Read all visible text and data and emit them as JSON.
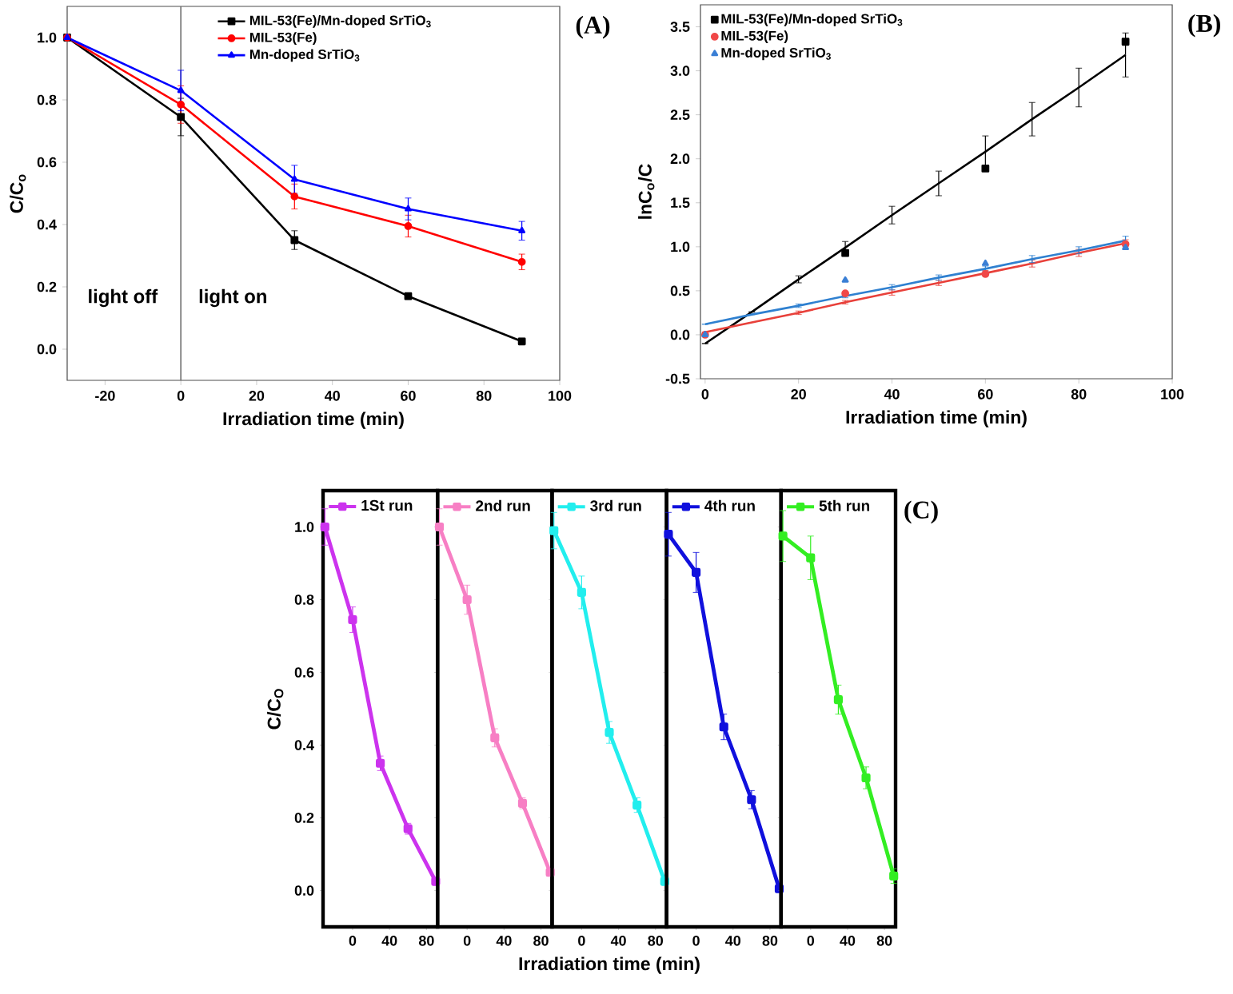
{
  "chart_data": [
    {
      "type": "line",
      "title": "(A)",
      "xlabel": "Irradiation time (min)",
      "ylabel": "C/C$_{o}$",
      "x": [
        -30,
        0,
        30,
        60,
        90
      ],
      "xlim": [
        -30,
        100
      ],
      "ylim": [
        -0.1,
        1.1
      ],
      "xticks": [
        -20,
        0,
        20,
        40,
        60,
        80,
        100
      ],
      "yticks": [
        {
          "value": 0,
          "label": "0.0"
        },
        {
          "value": 0.2,
          "label": "0.2"
        },
        {
          "value": 0.4,
          "label": "0.4"
        },
        {
          "value": 0.6,
          "label": "0.6"
        },
        {
          "value": 0.8,
          "label": "0.8"
        },
        {
          "value": 1,
          "label": "1.0"
        }
      ],
      "legend": "top",
      "ref_lines": [
        {
          "axis": "x",
          "value": 0,
          "color": "#707070"
        }
      ],
      "annotations": [
        "light off",
        "light on"
      ],
      "series": [
        {
          "name": "MIL-53(Fe)/Mn-doped SrTiO$_{3}$",
          "color": "#000000",
          "marker": "square",
          "values": [
            1.0,
            0.745,
            0.35,
            0.17,
            0.025
          ],
          "errors": [
            null,
            0.06,
            0.03,
            0.01,
            0.01
          ]
        },
        {
          "name": "MIL-53(Fe)",
          "color": "#ff0000",
          "marker": "circle",
          "values": [
            1.0,
            0.785,
            0.49,
            0.395,
            0.28
          ],
          "errors": [
            null,
            0.06,
            0.04,
            0.035,
            0.025
          ]
        },
        {
          "name": "Mn-doped SrTiO$_{3}$",
          "color": "#0000ff",
          "marker": "triangle",
          "values": [
            1.0,
            0.83,
            0.545,
            0.45,
            0.38
          ],
          "errors": [
            null,
            0.065,
            0.045,
            0.035,
            0.03
          ]
        }
      ]
    },
    {
      "type": "scatter",
      "title": "(B)",
      "xlabel": "Irradiation time (min)",
      "ylabel": "lnC$_{o}$/C",
      "xlim": [
        -1,
        100
      ],
      "ylim": [
        -0.5,
        3.75
      ],
      "xticks": [
        0,
        20,
        40,
        60,
        80,
        100
      ],
      "yticks": [
        {
          "value": -0.5,
          "label": "-0.5"
        },
        {
          "value": 0,
          "label": "0.0"
        },
        {
          "value": 0.5,
          "label": "0.5"
        },
        {
          "value": 1,
          "label": "1.0"
        },
        {
          "value": 1.5,
          "label": "1.5"
        },
        {
          "value": 2,
          "label": "2.0"
        },
        {
          "value": 2.5,
          "label": "2.5"
        },
        {
          "value": 3,
          "label": "3.0"
        },
        {
          "value": 3.5,
          "label": "3.5"
        }
      ],
      "legend": "top left",
      "series": [
        {
          "name": "MIL-53(Fe)/Mn-doped SrTiO$_{3}$",
          "color": "#000000",
          "marker": "square",
          "x": [
            30,
            60,
            90
          ],
          "values": [
            0.93,
            1.89,
            3.33
          ]
        },
        {
          "name": "MIL-53(Fe)",
          "color": "#f04848",
          "marker": "circle",
          "x": [
            0,
            30,
            60,
            90
          ],
          "values": [
            0,
            0.47,
            0.69,
            1.03
          ]
        },
        {
          "name": "Mn-doped SrTiO$_{3}$",
          "color": "#3a7fd5",
          "marker": "triangle",
          "x": [
            0,
            30,
            60,
            90
          ],
          "values": [
            0,
            0.62,
            0.81,
            0.99
          ]
        },
        {
          "type": "line",
          "color": "#000000",
          "x": [
            0,
            10,
            20,
            30,
            40,
            50,
            60,
            70,
            80,
            90
          ],
          "values": [
            -0.1,
            0.26,
            0.63,
            0.99,
            1.36,
            1.72,
            2.08,
            2.45,
            2.81,
            3.18
          ],
          "errors": [
            null,
            null,
            0.04,
            0.07,
            0.1,
            0.14,
            0.18,
            0.19,
            0.22,
            0.25
          ]
        },
        {
          "type": "line",
          "color": "#e8403a",
          "x": [
            0,
            10,
            20,
            30,
            40,
            50,
            60,
            70,
            80,
            90
          ],
          "values": [
            0.03,
            0.14,
            0.25,
            0.37,
            0.48,
            0.59,
            0.7,
            0.81,
            0.93,
            1.04
          ],
          "errors": [
            null,
            null,
            0.02,
            0.02,
            0.03,
            0.03,
            0.03,
            0.04,
            0.04,
            0.04
          ]
        },
        {
          "type": "line",
          "color": "#2f80d0",
          "x": [
            0,
            10,
            20,
            30,
            40,
            50,
            60,
            70,
            80,
            90
          ],
          "values": [
            0.12,
            0.23,
            0.33,
            0.44,
            0.54,
            0.65,
            0.75,
            0.86,
            0.96,
            1.07
          ],
          "errors": [
            null,
            null,
            0.02,
            0.02,
            0.03,
            0.03,
            0.03,
            0.04,
            0.04,
            0.05
          ]
        }
      ]
    },
    {
      "type": "line",
      "ylabel": "C/C$_{O}$",
      "x": [
        -30,
        0,
        30,
        60,
        90
      ],
      "xlim": [
        -32,
        92
      ],
      "ylim": [
        -0.1,
        1.1
      ],
      "xticks": [
        0,
        40,
        80
      ],
      "yticks": [
        {
          "value": 0,
          "label": "0.0"
        },
        {
          "value": 0.2,
          "label": "0.2"
        },
        {
          "value": 0.4,
          "label": "0.4"
        },
        {
          "value": 0.6,
          "label": "0.6"
        },
        {
          "value": 0.8,
          "label": "0.8"
        },
        {
          "value": 1,
          "label": "1.0"
        }
      ],
      "legend": "top left",
      "marker": "square",
      "series": [
        {
          "name": "1St run",
          "color": "#cc33ee",
          "values": [
            1.0,
            0.745,
            0.35,
            0.17,
            0.025
          ],
          "errors": [
            0.05,
            0.035,
            0.02,
            0.015,
            0.01
          ]
        }
      ]
    },
    {
      "type": "line",
      "x": [
        -30,
        0,
        30,
        60,
        90
      ],
      "xlim": [
        -32,
        92
      ],
      "ylim": [
        -0.1,
        1.1
      ],
      "xticks": [
        0,
        40,
        80
      ],
      "yticks": [
        {
          "value": 0,
          "label": null
        },
        {
          "value": 0.2,
          "label": null
        },
        {
          "value": 0.4,
          "label": null
        },
        {
          "value": 0.6,
          "label": null
        },
        {
          "value": 0.8,
          "label": null
        },
        {
          "value": 1,
          "label": null
        }
      ],
      "tick_labels": "x",
      "legend": "top left",
      "marker": "square",
      "series": [
        {
          "name": "2nd run",
          "color": "#f77fc4",
          "values": [
            1.0,
            0.8,
            0.42,
            0.24,
            0.05
          ],
          "errors": [
            0.05,
            0.04,
            0.025,
            0.015,
            0.01
          ]
        }
      ]
    },
    {
      "type": "line",
      "xlabel": "Irradiation time (min)",
      "x": [
        -30,
        0,
        30,
        60,
        90
      ],
      "xlim": [
        -32,
        92
      ],
      "ylim": [
        -0.1,
        1.1
      ],
      "xticks": [
        0,
        40,
        80
      ],
      "yticks": [
        {
          "value": 0,
          "label": null
        },
        {
          "value": 0.2,
          "label": null
        },
        {
          "value": 0.4,
          "label": null
        },
        {
          "value": 0.6,
          "label": null
        },
        {
          "value": 0.8,
          "label": null
        },
        {
          "value": 1,
          "label": null
        }
      ],
      "tick_labels": "x",
      "legend": "top left",
      "marker": "square",
      "series": [
        {
          "name": "3rd run",
          "color": "#22eeee",
          "values": [
            0.99,
            0.82,
            0.435,
            0.235,
            0.025
          ],
          "errors": [
            0.05,
            0.045,
            0.03,
            0.02,
            0.01
          ]
        }
      ]
    },
    {
      "type": "line",
      "x": [
        -30,
        0,
        30,
        60,
        90
      ],
      "xlim": [
        -32,
        92
      ],
      "ylim": [
        -0.1,
        1.1
      ],
      "xticks": [
        0,
        40,
        80
      ],
      "yticks": [
        {
          "value": 0,
          "label": null
        },
        {
          "value": 0.2,
          "label": null
        },
        {
          "value": 0.4,
          "label": null
        },
        {
          "value": 0.6,
          "label": null
        },
        {
          "value": 0.8,
          "label": null
        },
        {
          "value": 1,
          "label": null
        }
      ],
      "tick_labels": "x",
      "legend": "top left",
      "marker": "square",
      "series": [
        {
          "name": "4th run",
          "color": "#1010dd",
          "values": [
            0.98,
            0.875,
            0.45,
            0.25,
            0.005
          ],
          "errors": [
            0.06,
            0.055,
            0.035,
            0.025,
            0.01
          ]
        }
      ]
    },
    {
      "type": "line",
      "title": "(C)",
      "x": [
        -30,
        0,
        30,
        60,
        90
      ],
      "xlim": [
        -32,
        92
      ],
      "ylim": [
        -0.1,
        1.1
      ],
      "xticks": [
        0,
        40,
        80
      ],
      "yticks": [
        {
          "value": 0,
          "label": null
        },
        {
          "value": 0.2,
          "label": null
        },
        {
          "value": 0.4,
          "label": null
        },
        {
          "value": 0.6,
          "label": null
        },
        {
          "value": 0.8,
          "label": null
        },
        {
          "value": 1,
          "label": null
        }
      ],
      "tick_labels": "x",
      "legend": "top left",
      "marker": "square",
      "series": [
        {
          "name": "5th run",
          "color": "#33ee22",
          "values": [
            0.975,
            0.915,
            0.525,
            0.31,
            0.04
          ],
          "errors": [
            0.07,
            0.06,
            0.04,
            0.03,
            0.02
          ]
        }
      ]
    }
  ]
}
